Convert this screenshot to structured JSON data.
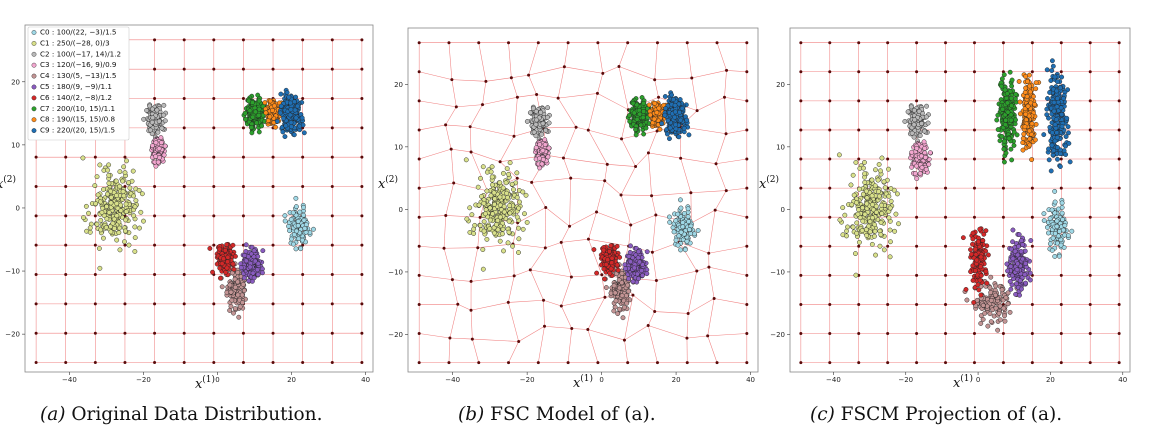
{
  "chart_data": [
    {
      "type": "scatter",
      "panel": "a",
      "title": "",
      "xlabel": "x(1)",
      "ylabel": "x(2)",
      "xlim": [
        -52,
        42
      ],
      "ylim": [
        -26,
        29
      ],
      "xticks": [
        -40,
        -20,
        0,
        20,
        40
      ],
      "yticks": [
        -20,
        -10,
        0,
        10,
        20
      ],
      "grid": "regular",
      "legend_position": "top-left",
      "clusters": [
        {
          "name": "C0",
          "label": "C0 : 100/(22, −3)/1.5",
          "n": 100,
          "center": [
            22,
            -3
          ],
          "std": 1.5,
          "color": "#9fd8e6"
        },
        {
          "name": "C1",
          "label": "C1 : 250/(−28, 0)/3",
          "n": 250,
          "center": [
            -28,
            0
          ],
          "std": 3,
          "color": "#d8e08a"
        },
        {
          "name": "C2",
          "label": "C2 : 100/(−17, 14)/1.2",
          "n": 100,
          "center": [
            -17,
            14
          ],
          "std": 1.2,
          "color": "#b9b9b9"
        },
        {
          "name": "C3",
          "label": "C3 : 120/(−16, 9)/0.9",
          "n": 120,
          "center": [
            -16,
            9
          ],
          "std": 0.9,
          "color": "#f2a6cf"
        },
        {
          "name": "C4",
          "label": "C4 : 130/(5, −13)/1.5",
          "n": 130,
          "center": [
            5,
            -13
          ],
          "std": 1.5,
          "color": "#c29494"
        },
        {
          "name": "C5",
          "label": "C5 : 180/(9, −9)/1.1",
          "n": 180,
          "center": [
            9,
            -9
          ],
          "std": 1.1,
          "color": "#8a5cc0"
        },
        {
          "name": "C6",
          "label": "C6 : 140/(2, −8)/1.2",
          "n": 140,
          "center": [
            2,
            -8
          ],
          "std": 1.2,
          "color": "#d42828"
        },
        {
          "name": "C7",
          "label": "C7 : 200/(10, 15)/1.1",
          "n": 200,
          "center": [
            10,
            15
          ],
          "std": 1.1,
          "color": "#2ca02c"
        },
        {
          "name": "C8",
          "label": "C8 : 190/(15, 15)/0.8",
          "n": 190,
          "center": [
            15,
            15
          ],
          "std": 0.8,
          "color": "#ff8c1a"
        },
        {
          "name": "C9",
          "label": "C9 : 220/(20, 15)/1.5",
          "n": 220,
          "center": [
            20,
            15
          ],
          "std": 1.5,
          "color": "#1f6fb4"
        }
      ]
    },
    {
      "type": "scatter",
      "panel": "b",
      "title": "",
      "xlabel": "x(1)",
      "ylabel": "x(2)",
      "xlim": [
        -52,
        42
      ],
      "ylim": [
        -26,
        29
      ],
      "xticks": [
        -40,
        -20,
        0,
        20,
        40
      ],
      "yticks": [
        -20,
        -10,
        0,
        10,
        20
      ],
      "grid": "warped",
      "clusters_same_as_panel": "a"
    },
    {
      "type": "scatter",
      "panel": "c",
      "title": "",
      "xlabel": "x(1)",
      "ylabel": "x(2)",
      "xlim": [
        -52,
        42
      ],
      "ylim": [
        -26,
        29
      ],
      "xticks": [
        -40,
        -20,
        0,
        20,
        40
      ],
      "yticks": [
        -20,
        -10,
        0,
        10,
        20
      ],
      "grid": "regular",
      "clusters_same_as_panel": "a"
    }
  ],
  "captions": [
    {
      "letter": "(a)",
      "text": " Original Data Distribution."
    },
    {
      "letter": "(b)",
      "text": " FSC Model of (a)."
    },
    {
      "letter": "(c)",
      "text": " FSCM Projection of (a)."
    }
  ],
  "colors": {
    "grid": "#f08080",
    "node": "#5a0a0a",
    "frame": "#888888"
  }
}
